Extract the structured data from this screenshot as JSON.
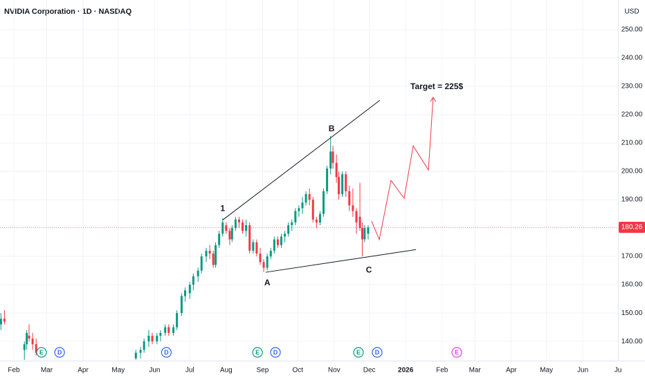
{
  "chart_data": {
    "type": "candlestick",
    "title": "NVIDIA Corporation · 1D · NASDAQ",
    "currency": "USD",
    "up_color": "#089981",
    "down_color": "#f23645",
    "grid": true,
    "grid_color": "#f0f3fa",
    "xlim": [
      20.2,
      547
    ],
    "ylim": [
      133.2,
      260.5
    ],
    "yticks": [
      {
        "value": 140,
        "label": "140.00"
      },
      {
        "value": 150,
        "label": "150.00"
      },
      {
        "value": 160,
        "label": "160.00"
      },
      {
        "value": 170,
        "label": "170.00"
      },
      {
        "value": 180,
        "label": "180.00"
      },
      {
        "value": 190,
        "label": "190.00"
      },
      {
        "value": 200,
        "label": "200.00"
      },
      {
        "value": 210,
        "label": "210.00"
      },
      {
        "value": 220,
        "label": "220.00"
      },
      {
        "value": 230,
        "label": "230.00"
      },
      {
        "value": 240,
        "label": "240.00"
      },
      {
        "value": 250,
        "label": "250.00"
      }
    ],
    "xticks": [
      {
        "value": 32,
        "label": "Feb"
      },
      {
        "value": 60,
        "label": "Mar"
      },
      {
        "value": 91,
        "label": "Apr"
      },
      {
        "value": 121,
        "label": "May"
      },
      {
        "value": 152,
        "label": "Jun"
      },
      {
        "value": 182,
        "label": "Jul"
      },
      {
        "value": 213,
        "label": "Aug"
      },
      {
        "value": 244,
        "label": "Sep"
      },
      {
        "value": 274,
        "label": "Oct"
      },
      {
        "value": 305,
        "label": "Nov"
      },
      {
        "value": 335,
        "label": "Dec"
      },
      {
        "value": 366,
        "label": "2026"
      },
      {
        "value": 397,
        "label": "Feb"
      },
      {
        "value": 425,
        "label": "Mar"
      },
      {
        "value": 456,
        "label": "Apr"
      },
      {
        "value": 486,
        "label": "May"
      },
      {
        "value": 517,
        "label": "Jun"
      },
      {
        "value": 547,
        "label": "Ju"
      }
    ],
    "last_price": 180.26,
    "candles": {
      "x": [
        18,
        21,
        24,
        41,
        43,
        45,
        48,
        51,
        136,
        140,
        143,
        147,
        150,
        154,
        157,
        161,
        164,
        168,
        171,
        175,
        178,
        182,
        185,
        189,
        192,
        196,
        199,
        202,
        204,
        207,
        210,
        213,
        216,
        218,
        221,
        224,
        227,
        230,
        233,
        236,
        239,
        242,
        245,
        248,
        251,
        254,
        257,
        260,
        263,
        266,
        269,
        272,
        275,
        278,
        281,
        284,
        287,
        290,
        293,
        296,
        299,
        302,
        304,
        307,
        309,
        312,
        315,
        318,
        321,
        324,
        327,
        329,
        331,
        334
      ],
      "open": [
        143,
        146,
        148,
        137,
        139,
        142,
        141,
        139,
        134,
        136,
        137,
        140,
        142,
        140,
        142,
        143,
        145,
        143,
        145,
        150,
        156,
        157,
        160,
        163,
        165,
        170,
        172,
        171,
        167,
        174,
        178,
        181,
        179,
        176,
        180,
        183,
        182,
        179,
        181,
        172,
        175,
        171,
        168,
        166,
        170,
        172,
        176,
        174,
        177,
        178,
        181,
        182,
        186,
        187,
        189,
        192,
        190,
        183,
        182,
        185,
        193,
        201,
        207,
        203,
        198,
        192,
        199,
        193,
        188,
        186,
        184,
        180,
        176,
        178
      ],
      "high": [
        147,
        150,
        151,
        140,
        144,
        146,
        143,
        141,
        137,
        138,
        141,
        144,
        143,
        143,
        144,
        146,
        146,
        146,
        151,
        157,
        159,
        161,
        164,
        166,
        171,
        173,
        174,
        172,
        175,
        179,
        183.5,
        182,
        180,
        181,
        184,
        184,
        183,
        183,
        182,
        176,
        176,
        173,
        169,
        171,
        173,
        177,
        177,
        178,
        179,
        182,
        183,
        187,
        188,
        191,
        193,
        194,
        191,
        184,
        186,
        194,
        202,
        212.5,
        209,
        206,
        200,
        200,
        200,
        195,
        194,
        187,
        196,
        182,
        181,
        181
      ],
      "low": [
        140,
        144,
        146,
        133.5,
        137,
        140,
        137,
        135,
        133.5,
        134,
        136,
        138,
        139,
        139,
        140,
        142,
        142,
        142,
        144,
        149,
        154,
        155,
        158,
        161,
        164,
        168,
        169,
        166,
        166,
        173,
        177,
        178,
        174,
        175,
        179,
        180,
        178,
        177,
        171,
        171,
        170,
        167,
        164.5,
        165,
        169,
        171,
        173,
        173,
        175,
        177,
        179,
        181,
        184,
        185,
        188,
        188,
        182,
        180,
        181,
        184,
        192,
        199,
        201,
        196,
        190,
        191,
        191,
        186,
        184,
        178,
        179,
        170,
        175,
        176
      ],
      "close": [
        146,
        148,
        147,
        139,
        143,
        141,
        139,
        136,
        136,
        137,
        140,
        142,
        140,
        142,
        143,
        145,
        143,
        145,
        150,
        156,
        158,
        160,
        163,
        165,
        170,
        172,
        171,
        167,
        174,
        178,
        182,
        179,
        176,
        180,
        183,
        182,
        179,
        181,
        172,
        175,
        171,
        168,
        166,
        170,
        172,
        176,
        174,
        177,
        178,
        181,
        182,
        186,
        187,
        189,
        192,
        190,
        183,
        182,
        185,
        193,
        201,
        207,
        203,
        198,
        192,
        199,
        193,
        188,
        186,
        182,
        180,
        176,
        180,
        180.26
      ]
    },
    "trendlines": [
      {
        "x": [
          210.2,
          344
        ],
        "y": [
          182.9,
          225.1
        ],
        "color": "#131722"
      },
      {
        "x": [
          246.7,
          374.8
        ],
        "y": [
          164.4,
          172.4
        ],
        "color": "#131722"
      }
    ],
    "projection": {
      "x": [
        337,
        343.5,
        353.5,
        364.7,
        372.4,
        385.4,
        389.4
      ],
      "y": [
        182.4,
        175.9,
        196.8,
        190.5,
        209,
        200.5,
        226.1
      ],
      "color": "#f23645"
    },
    "annotations": [
      {
        "text": "1",
        "x": 210,
        "y": 186.8
      },
      {
        "text": "B",
        "x": 302.8,
        "y": 214.9
      },
      {
        "text": "A",
        "x": 248,
        "y": 160.5
      },
      {
        "text": "C",
        "x": 334.7,
        "y": 165.1
      },
      {
        "text": "Target = 225$",
        "x": 392.5,
        "y": 229.8
      }
    ],
    "events": [
      {
        "label": "E",
        "x": 55.6,
        "color": "#089981"
      },
      {
        "label": "D",
        "x": 71,
        "color": "#2962ff"
      },
      {
        "label": "D",
        "x": 162,
        "color": "#2962ff"
      },
      {
        "label": "E",
        "x": 239.7,
        "color": "#089981"
      },
      {
        "label": "D",
        "x": 255,
        "color": "#2962ff"
      },
      {
        "label": "E",
        "x": 325.8,
        "color": "#089981"
      },
      {
        "label": "D",
        "x": 341.7,
        "color": "#2962ff"
      },
      {
        "label": "E",
        "x": 409.6,
        "color": "#e040fb"
      }
    ]
  }
}
